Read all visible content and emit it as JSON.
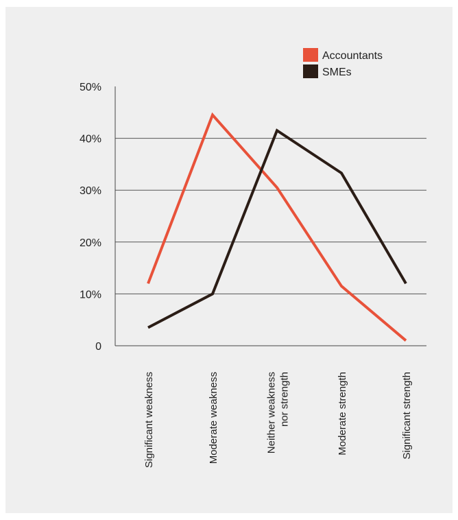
{
  "chart_data": {
    "type": "line",
    "title": "",
    "xlabel": "",
    "ylabel": "",
    "ylim": [
      0,
      50
    ],
    "yticks": [
      0,
      10,
      20,
      30,
      40,
      50
    ],
    "ytick_labels": [
      "0",
      "10%",
      "20%",
      "30%",
      "40%",
      "50%"
    ],
    "grid": "horizontal",
    "legend_position": "top-right",
    "categories": [
      [
        "Significant weakness"
      ],
      [
        "Moderate weakness"
      ],
      [
        "Neither weakness",
        "nor strength"
      ],
      [
        "Moderate strength"
      ],
      [
        "Significant strength"
      ]
    ],
    "series": [
      {
        "name": "Accountants",
        "color": "#e8523a",
        "values": [
          12,
          44.5,
          30.5,
          11.5,
          1
        ]
      },
      {
        "name": "SMEs",
        "color": "#2b1d16",
        "values": [
          3.5,
          10,
          41.5,
          33.3,
          12
        ]
      }
    ]
  }
}
